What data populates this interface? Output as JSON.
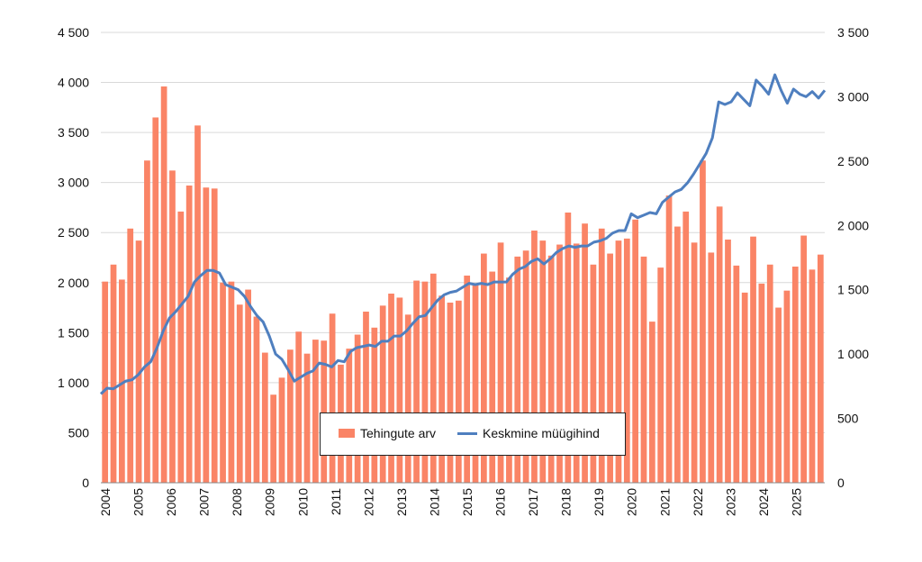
{
  "chart_data": {
    "type": "bar",
    "title": "",
    "xlabel": "",
    "ylabel": "",
    "x_tick_labels": [
      "2004",
      "2005",
      "2006",
      "2007",
      "2008",
      "2009",
      "2010",
      "2011",
      "2012",
      "2013",
      "2014",
      "2015",
      "2016",
      "2017",
      "2018",
      "2019",
      "2020",
      "2021",
      "2022",
      "2023",
      "2024",
      "2025"
    ],
    "y_left": {
      "ylim": [
        0,
        4500
      ],
      "ticks": [
        "0",
        "500",
        "1 000",
        "1 500",
        "2 000",
        "2 500",
        "3 000",
        "3 500",
        "4 000",
        "4 500"
      ]
    },
    "y_right": {
      "ylim": [
        0,
        3500
      ],
      "ticks": [
        "0",
        "500",
        "1 000",
        "1 500",
        "2 000",
        "2 500",
        "3 000",
        "3 500"
      ]
    },
    "grid": "horizontal",
    "legend_placement": "bottom-center",
    "colors": {
      "bars": "#fa8466",
      "line": "#4f7fbf",
      "grid": "#d9d9d9"
    },
    "series": [
      {
        "name": "Tehingute arv",
        "type": "bar",
        "axis": "left",
        "values": [
          2010,
          2180,
          2030,
          2540,
          2420,
          3220,
          3650,
          3960,
          3120,
          2710,
          2970,
          3570,
          2950,
          2940,
          2000,
          2010,
          1780,
          1930,
          1660,
          1300,
          880,
          1050,
          1330,
          1510,
          1290,
          1430,
          1420,
          1690,
          1180,
          1340,
          1480,
          1710,
          1550,
          1770,
          1890,
          1850,
          1680,
          2020,
          2010,
          2090,
          1870,
          1800,
          1820,
          2070,
          1980,
          2290,
          2110,
          2400,
          2050,
          2260,
          2320,
          2520,
          2420,
          2270,
          2380,
          2700,
          2390,
          2590,
          2180,
          2540,
          2290,
          2420,
          2440,
          2630,
          2260,
          1610,
          2150,
          2870,
          2560,
          2710,
          2400,
          3220,
          2300,
          2760,
          2430,
          2170,
          1900,
          2460,
          1990,
          2180,
          1750,
          1920,
          2160,
          2470,
          2130,
          2280
        ]
      },
      {
        "name": "Keskmine müügihind",
        "type": "line",
        "axis": "right",
        "values": [
          690,
          735,
          730,
          760,
          790,
          800,
          840,
          900,
          940,
          1050,
          1180,
          1280,
          1330,
          1390,
          1450,
          1560,
          1610,
          1650,
          1650,
          1630,
          1540,
          1520,
          1500,
          1450,
          1370,
          1300,
          1250,
          1140,
          1000,
          960,
          880,
          790,
          820,
          850,
          870,
          930,
          920,
          900,
          950,
          940,
          1020,
          1050,
          1060,
          1070,
          1060,
          1100,
          1100,
          1140,
          1140,
          1180,
          1240,
          1290,
          1300,
          1360,
          1420,
          1460,
          1480,
          1490,
          1520,
          1550,
          1540,
          1550,
          1540,
          1560,
          1560,
          1560,
          1620,
          1660,
          1680,
          1720,
          1740,
          1700,
          1740,
          1790,
          1820,
          1840,
          1830,
          1840,
          1840,
          1870,
          1880,
          1900,
          1940,
          1960,
          1960,
          2090,
          2060,
          2080,
          2100,
          2090,
          2180,
          2220,
          2260,
          2280,
          2330,
          2400,
          2480,
          2560,
          2680,
          2960,
          2940,
          2960,
          3030,
          2980,
          2930,
          3130,
          3080,
          3020,
          3170,
          3050,
          2950,
          3060,
          3020,
          3000,
          3040,
          2990,
          3050
        ]
      }
    ]
  }
}
